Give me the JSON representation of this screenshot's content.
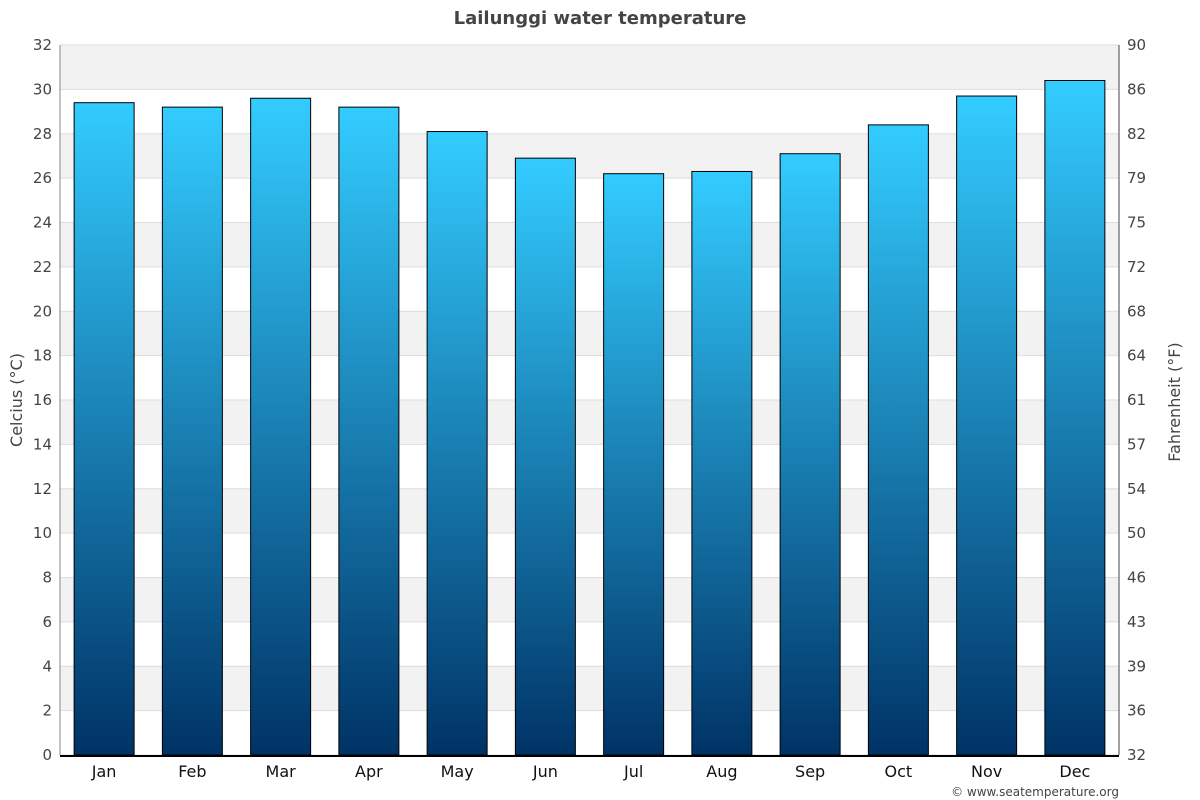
{
  "chart_data": {
    "type": "bar",
    "title": "Lailunggi water temperature",
    "ylabel": "Celcius (°C)",
    "ylabel_right": "Fahrenheit (°F)",
    "categories": [
      "Jan",
      "Feb",
      "Mar",
      "Apr",
      "May",
      "Jun",
      "Jul",
      "Aug",
      "Sep",
      "Oct",
      "Nov",
      "Dec"
    ],
    "values": [
      29.4,
      29.2,
      29.6,
      29.2,
      28.1,
      26.9,
      26.2,
      26.3,
      27.1,
      28.4,
      29.7,
      30.4
    ],
    "ylim": [
      0,
      32
    ],
    "yticks": [
      0,
      2,
      4,
      6,
      8,
      10,
      12,
      14,
      16,
      18,
      20,
      22,
      24,
      26,
      28,
      30,
      32
    ],
    "yticks_right": [
      "32",
      "36",
      "39",
      "43",
      "46",
      "50",
      "54",
      "57",
      "61",
      "64",
      "68",
      "72",
      "75",
      "79",
      "82",
      "86",
      "90"
    ],
    "grid": true,
    "colors": {
      "bar_top": "#33ccff",
      "bar_bottom": "#003366",
      "band": "#f2f2f2"
    }
  },
  "footer": "© www.seatemperature.org"
}
